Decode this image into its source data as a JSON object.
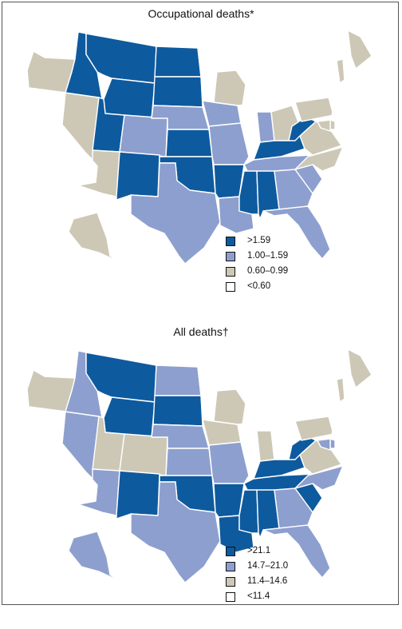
{
  "maps": [
    {
      "title": "Occupational deaths*",
      "legend": [
        {
          "label": ">1.59",
          "color": "#0e5a9e"
        },
        {
          "label": "1.00–1.59",
          "color": "#8d9fce"
        },
        {
          "label": "0.60–0.99",
          "color": "#cdc8b6"
        },
        {
          "label": "<0.60",
          "color": "#ffffff"
        }
      ],
      "states": {
        "WA": "<0.60",
        "OR": "0.60–0.99",
        "CA": "<0.60",
        "NV": "0.60–0.99",
        "ID": ">1.59",
        "MT": ">1.59",
        "WY": ">1.59",
        "UT": ">1.59",
        "AZ": "0.60–0.99",
        "CO": "1.00–1.59",
        "NM": ">1.59",
        "ND": ">1.59",
        "SD": ">1.59",
        "NE": "1.00–1.59",
        "KS": ">1.59",
        "OK": ">1.59",
        "TX": "1.00–1.59",
        "MN": "<0.60",
        "IA": "1.00–1.59",
        "MO": "1.00–1.59",
        "AR": ">1.59",
        "LA": "1.00–1.59",
        "WI": "0.60–0.99",
        "IL": "<0.60",
        "MI": "<0.60",
        "IN": "1.00–1.59",
        "OH": "0.60–0.99",
        "KY": ">1.59",
        "TN": "1.00–1.59",
        "MS": ">1.59",
        "AL": ">1.59",
        "GA": "1.00–1.59",
        "FL": "1.00–1.59",
        "SC": "1.00–1.59",
        "NC": "0.60–0.99",
        "VA": "0.60–0.99",
        "WV": ">1.59",
        "PA": "0.60–0.99",
        "NY": "<0.60",
        "VT": "0.60–0.99",
        "NH": "<0.60",
        "ME": "0.60–0.99",
        "MA": "<0.60",
        "RI": "<0.60",
        "CT": "<0.60",
        "NJ": "<0.60",
        "DE": "0.60–0.99",
        "MD": "0.60–0.99",
        "AK": "0.60–0.99",
        "HI": "<0.60"
      }
    },
    {
      "title": "All deaths†",
      "legend": [
        {
          "label": ">21.1",
          "color": "#0e5a9e"
        },
        {
          "label": "14.7–21.0",
          "color": "#8d9fce"
        },
        {
          "label": "11.4–14.6",
          "color": "#cdc8b6"
        },
        {
          "label": "<11.4",
          "color": "#ffffff"
        }
      ],
      "states": {
        "WA": "<11.4",
        "OR": "11.4–14.6",
        "CA": "<11.4",
        "NV": "14.7–21.0",
        "ID": "14.7–21.0",
        "MT": ">21.1",
        "WY": ">21.1",
        "UT": "11.4–14.6",
        "AZ": "14.7–21.0",
        "CO": "11.4–14.6",
        "NM": ">21.1",
        "ND": "14.7–21.0",
        "SD": ">21.1",
        "NE": "14.7–21.0",
        "KS": "14.7–21.0",
        "OK": ">21.1",
        "TX": "14.7–21.0",
        "MN": "<11.4",
        "IA": "11.4–14.6",
        "MO": "14.7–21.0",
        "AR": ">21.1",
        "LA": ">21.1",
        "WI": "11.4–14.6",
        "IL": "<11.4",
        "MI": "<11.4",
        "IN": "11.4–14.6",
        "OH": "<11.4",
        "KY": ">21.1",
        "TN": ">21.1",
        "MS": ">21.1",
        "AL": ">21.1",
        "GA": "14.7–21.0",
        "FL": "14.7–21.0",
        "SC": ">21.1",
        "NC": "14.7–21.0",
        "VA": "11.4–14.6",
        "WV": ">21.1",
        "PA": "11.4–14.6",
        "NY": "<11.4",
        "VT": "11.4–14.6",
        "NH": "<11.4",
        "ME": "11.4–14.6",
        "MA": "<11.4",
        "RI": "<11.4",
        "CT": "<11.4",
        "NJ": "<11.4",
        "DE": "14.7–21.0",
        "MD": "14.7–21.0",
        "AK": "14.7–21.0",
        "HI": "<11.4"
      }
    }
  ]
}
